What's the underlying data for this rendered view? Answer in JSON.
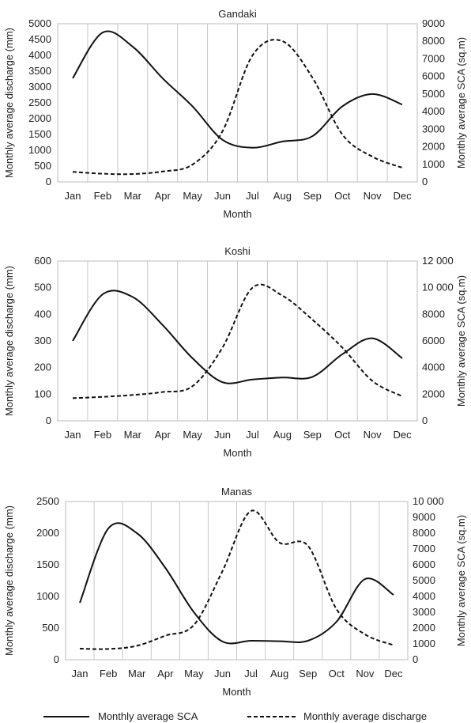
{
  "chart_data": [
    {
      "type": "line",
      "title": "Gandaki",
      "xlabel": "Month",
      "ylabel_left": "Monthly average discharge (mm)",
      "ylabel_right": "Monthly average SCA (sq.m)",
      "categories": [
        "Jan",
        "Feb",
        "Mar",
        "Apr",
        "May",
        "Jun",
        "Jul",
        "Aug",
        "Sep",
        "Oct",
        "Nov",
        "Dec"
      ],
      "ylim_left": [
        0,
        5000
      ],
      "yticks_left": [
        "0",
        "500",
        "1000",
        "1500",
        "2000",
        "2500",
        "3000",
        "3500",
        "4000",
        "4500",
        "5000"
      ],
      "ylim_right": [
        0,
        9000
      ],
      "yticks_right": [
        "0",
        "1000",
        "2000",
        "3000",
        "4000",
        "5000",
        "6000",
        "7000",
        "8000",
        "9000"
      ],
      "series": [
        {
          "name": "Monthly average SCA",
          "axis": "right",
          "style": "solid",
          "values": [
            5900,
            8500,
            7700,
            5900,
            4300,
            2400,
            1950,
            2300,
            2600,
            4300,
            5000,
            4400
          ]
        },
        {
          "name": "Monthly average discharge",
          "axis": "left",
          "style": "dashed",
          "values": [
            320,
            260,
            250,
            330,
            550,
            1600,
            4000,
            4450,
            3300,
            1500,
            800,
            450
          ]
        }
      ]
    },
    {
      "type": "line",
      "title": "Koshi",
      "xlabel": "Month",
      "ylabel_left": "Monthly average discharge (mm)",
      "ylabel_right": "Monthly average SCA (sq.m)",
      "categories": [
        "Jan",
        "Feb",
        "Mar",
        "Apr",
        "May",
        "Jun",
        "Jul",
        "Aug",
        "Sep",
        "Oct",
        "Nov",
        "Dec"
      ],
      "ylim_left": [
        0,
        600
      ],
      "yticks_left": [
        "0",
        "100",
        "200",
        "300",
        "400",
        "500",
        "600"
      ],
      "ylim_right": [
        0,
        12000
      ],
      "yticks_right": [
        "0",
        "2000",
        "4000",
        "6000",
        "8000",
        "10 000",
        "12 000"
      ],
      "series": [
        {
          "name": "Monthly average SCA",
          "axis": "right",
          "style": "solid",
          "values": [
            6000,
            9500,
            9300,
            7200,
            4700,
            2900,
            3100,
            3250,
            3300,
            5000,
            6200,
            4700
          ]
        },
        {
          "name": "Monthly average discharge",
          "axis": "left",
          "style": "dashed",
          "values": [
            85,
            90,
            97,
            108,
            130,
            275,
            500,
            470,
            380,
            275,
            150,
            92
          ]
        }
      ]
    },
    {
      "type": "line",
      "title": "Manas",
      "xlabel": "Month",
      "ylabel_left": "Monthly average discharge (mm)",
      "ylabel_right": "Monthly average SCA (sq.m)",
      "categories": [
        "Jan",
        "Feb",
        "Mar",
        "Apr",
        "May",
        "Jun",
        "Jul",
        "Aug",
        "Sep",
        "Oct",
        "Nov",
        "Dec"
      ],
      "ylim_left": [
        0,
        2500
      ],
      "yticks_left": [
        "0",
        "500",
        "1000",
        "1500",
        "2000",
        "2500"
      ],
      "ylim_right": [
        0,
        10000
      ],
      "yticks_right": [
        "0",
        "1000",
        "2000",
        "3000",
        "4000",
        "5000",
        "6000",
        "7000",
        "8000",
        "9000",
        "10 000"
      ],
      "series": [
        {
          "name": "Monthly average SCA",
          "axis": "right",
          "style": "solid",
          "values": [
            3600,
            8300,
            8000,
            5800,
            3000,
            1150,
            1200,
            1170,
            1200,
            2400,
            5100,
            4100
          ]
        },
        {
          "name": "Monthly average discharge",
          "axis": "left",
          "style": "dashed",
          "values": [
            175,
            170,
            220,
            380,
            550,
            1400,
            2350,
            1850,
            1800,
            800,
            400,
            230
          ]
        }
      ]
    }
  ],
  "legend": {
    "solid_label": "Monthly average SCA",
    "dashed_label": "Monthly average discharge"
  }
}
